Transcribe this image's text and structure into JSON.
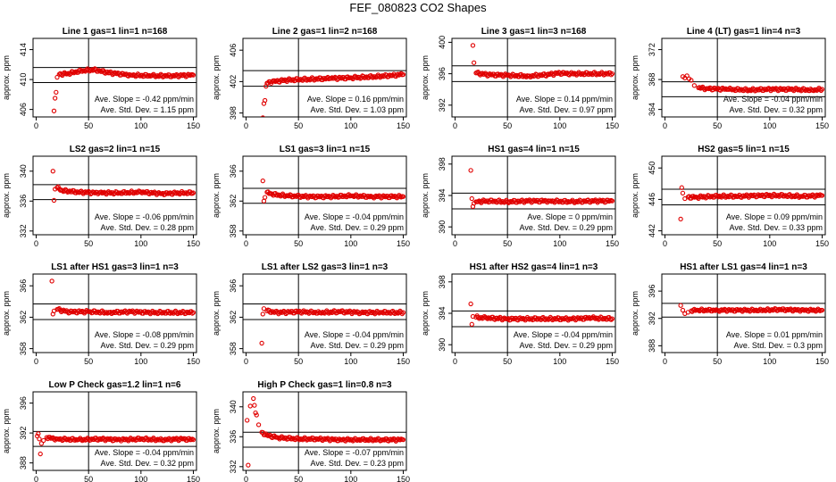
{
  "figure": {
    "title": "FEF_080823  CO2 Shapes"
  },
  "style": {
    "point_color": "#e00000",
    "axis_color": "#000000",
    "background": "#ffffff"
  },
  "chart_data": [
    {
      "type": "scatter",
      "title": "Line 1 gas=1 lin=1 n=168",
      "ylabel": "approx. ppm",
      "xlim": [
        0,
        150
      ],
      "ylim": [
        405,
        415.5
      ],
      "xticks": [
        0,
        50,
        100,
        150
      ],
      "yticks": [
        406,
        410,
        414
      ],
      "vline": 50,
      "hlines": [
        411.6,
        409.6
      ],
      "annotations": [
        "Ave. Slope = -0.42 ppm/min",
        "Ave. Std. Dev. = 1.15 ppm"
      ],
      "series": [
        {
          "x": [
            17,
            18,
            19,
            20,
            22,
            30,
            45,
            55,
            70,
            90,
            110,
            130,
            150
          ],
          "y": [
            405.8,
            407.5,
            408.3,
            410.3,
            410.7,
            410.8,
            411.2,
            411.3,
            410.9,
            410.6,
            410.5,
            410.5,
            410.6
          ]
        }
      ]
    },
    {
      "type": "scatter",
      "title": "Line 2 gas=1 lin=2 n=168",
      "ylabel": "approx. ppm",
      "xlim": [
        0,
        150
      ],
      "ylim": [
        397.5,
        407.5
      ],
      "xticks": [
        0,
        50,
        100,
        150
      ],
      "yticks": [
        398,
        402,
        406
      ],
      "vline": 50,
      "hlines": [
        403.4,
        401.4
      ],
      "annotations": [
        "Ave. Slope = 0.16 ppm/min",
        "Ave. Std. Dev. = 1.03 ppm"
      ],
      "series": [
        {
          "x": [
            16,
            17,
            18,
            19,
            20,
            25,
            40,
            60,
            80,
            100,
            120,
            140,
            150
          ],
          "y": [
            397.4,
            399.2,
            399.6,
            401.4,
            401.8,
            402.0,
            402.2,
            402.3,
            402.4,
            402.5,
            402.6,
            402.8,
            402.9
          ]
        }
      ]
    },
    {
      "type": "scatter",
      "title": "Line 3 gas=1 lin=3 n=168",
      "ylabel": "approx. ppm",
      "xlim": [
        0,
        150
      ],
      "ylim": [
        390.5,
        400.5
      ],
      "xticks": [
        0,
        50,
        100,
        150
      ],
      "yticks": [
        392,
        396,
        400
      ],
      "vline": 50,
      "hlines": [
        397.0,
        395.0
      ],
      "annotations": [
        "Ave. Slope = 0.14 ppm/min",
        "Ave. Std. Dev. = 0.97 ppm"
      ],
      "series": [
        {
          "x": [
            17,
            18,
            20,
            30,
            50,
            70,
            90,
            100,
            110,
            130,
            150
          ],
          "y": [
            399.6,
            397.4,
            396.1,
            395.9,
            395.8,
            395.7,
            395.9,
            396.1,
            396.0,
            396.0,
            396.0
          ]
        }
      ]
    },
    {
      "type": "scatter",
      "title": "Line 4 (LT) gas=1 lin=4 n=3",
      "ylabel": "approx. ppm",
      "xlim": [
        0,
        150
      ],
      "ylim": [
        363,
        373.5
      ],
      "xticks": [
        0,
        50,
        100,
        150
      ],
      "yticks": [
        364,
        368,
        372
      ],
      "vline": 50,
      "hlines": [
        367.7,
        365.7
      ],
      "annotations": [
        "Ave. Slope = -0.04 ppm/min",
        "Ave. Std. Dev. = 0.32 ppm"
      ],
      "series": [
        {
          "x": [
            17,
            19,
            21,
            23,
            25,
            28,
            32,
            40,
            60,
            80,
            100,
            120,
            140,
            150
          ],
          "y": [
            368.4,
            368.2,
            368.5,
            368.1,
            367.9,
            367.2,
            366.9,
            366.8,
            366.7,
            366.6,
            366.7,
            366.7,
            366.6,
            366.7
          ]
        }
      ]
    },
    {
      "type": "scatter",
      "title": "LS2 gas=2 lin=1 n=15",
      "ylabel": "approx. ppm",
      "xlim": [
        0,
        150
      ],
      "ylim": [
        331.5,
        342
      ],
      "xticks": [
        0,
        50,
        100,
        150
      ],
      "yticks": [
        332,
        336,
        340
      ],
      "vline": 50,
      "hlines": [
        338.2,
        336.2
      ],
      "annotations": [
        "Ave. Slope = -0.06 ppm/min",
        "Ave. Std. Dev. = 0.28 ppm"
      ],
      "series": [
        {
          "x": [
            16,
            17,
            18,
            20,
            25,
            40,
            60,
            80,
            100,
            120,
            140,
            150
          ],
          "y": [
            340.0,
            336.1,
            337.6,
            337.8,
            337.4,
            337.2,
            337.1,
            337.1,
            337.2,
            337.0,
            337.1,
            337.1
          ]
        }
      ]
    },
    {
      "type": "scatter",
      "title": "LS1 gas=3 lin=1 n=15",
      "ylabel": "approx. ppm",
      "xlim": [
        0,
        150
      ],
      "ylim": [
        357.5,
        368
      ],
      "xticks": [
        0,
        50,
        100,
        150
      ],
      "yticks": [
        358,
        362,
        366
      ],
      "vline": 50,
      "hlines": [
        363.7,
        361.7
      ],
      "annotations": [
        "Ave. Slope = -0.04 ppm/min",
        "Ave. Std. Dev. = 0.29 ppm"
      ],
      "series": [
        {
          "x": [
            16,
            17,
            18,
            20,
            25,
            40,
            60,
            80,
            100,
            120,
            140,
            150
          ],
          "y": [
            364.7,
            362.0,
            362.5,
            363.2,
            362.9,
            362.7,
            362.6,
            362.6,
            362.7,
            362.6,
            362.6,
            362.6
          ]
        }
      ]
    },
    {
      "type": "scatter",
      "title": "HS1 gas=4 lin=1 n=15",
      "ylabel": "approx. ppm",
      "xlim": [
        0,
        150
      ],
      "ylim": [
        389,
        399
      ],
      "xticks": [
        0,
        50,
        100,
        150
      ],
      "yticks": [
        390,
        394,
        398
      ],
      "vline": 50,
      "hlines": [
        394.3,
        392.3
      ],
      "annotations": [
        "Ave. Slope = 0 ppm/min",
        "Ave. Std. Dev. = 0.29 ppm"
      ],
      "series": [
        {
          "x": [
            15,
            16,
            17,
            18,
            20,
            30,
            50,
            70,
            90,
            110,
            130,
            150
          ],
          "y": [
            397.2,
            393.6,
            392.6,
            393.0,
            393.2,
            393.3,
            393.2,
            393.3,
            393.3,
            393.2,
            393.3,
            393.3
          ]
        }
      ]
    },
    {
      "type": "scatter",
      "title": "HS2 gas=5 lin=1 n=15",
      "ylabel": "approx. ppm",
      "xlim": [
        0,
        150
      ],
      "ylim": [
        441.5,
        451.5
      ],
      "xticks": [
        0,
        50,
        100,
        150
      ],
      "yticks": [
        442,
        446,
        450
      ],
      "vline": 50,
      "hlines": [
        447.3,
        445.3
      ],
      "annotations": [
        "Ave. Slope = 0.09 ppm/min",
        "Ave. Std. Dev. = 0.33 ppm"
      ],
      "series": [
        {
          "x": [
            15,
            16,
            17,
            19,
            22,
            30,
            50,
            70,
            90,
            110,
            130,
            150
          ],
          "y": [
            443.5,
            447.5,
            446.8,
            446.1,
            446.3,
            446.3,
            446.4,
            446.4,
            446.5,
            446.5,
            446.4,
            446.5
          ]
        }
      ]
    },
    {
      "type": "scatter",
      "title": "LS1 after HS1 gas=3 lin=1 n=3",
      "ylabel": "approx. ppm",
      "xlim": [
        0,
        150
      ],
      "ylim": [
        357.5,
        367.5
      ],
      "xticks": [
        0,
        50,
        100,
        150
      ],
      "yticks": [
        358,
        362,
        366
      ],
      "vline": 50,
      "hlines": [
        363.7,
        361.7
      ],
      "annotations": [
        "Ave. Slope = -0.08 ppm/min",
        "Ave. Std. Dev. = 0.29 ppm"
      ],
      "series": [
        {
          "x": [
            15,
            16,
            17,
            20,
            30,
            50,
            70,
            90,
            110,
            130,
            150
          ],
          "y": [
            366.6,
            362.4,
            362.8,
            363.0,
            362.7,
            362.7,
            362.6,
            362.7,
            362.6,
            362.6,
            362.6
          ]
        }
      ]
    },
    {
      "type": "scatter",
      "title": "LS1 after LS2 gas=3 lin=1 n=3",
      "ylabel": "approx. ppm",
      "xlim": [
        0,
        150
      ],
      "ylim": [
        357.5,
        367.5
      ],
      "xticks": [
        0,
        50,
        100,
        150
      ],
      "yticks": [
        358,
        362,
        366
      ],
      "vline": 50,
      "hlines": [
        363.7,
        361.7
      ],
      "annotations": [
        "Ave. Slope = -0.04 ppm/min",
        "Ave. Std. Dev. = 0.29 ppm"
      ],
      "series": [
        {
          "x": [
            15,
            16,
            17,
            20,
            30,
            50,
            70,
            90,
            110,
            130,
            150
          ],
          "y": [
            358.7,
            362.4,
            363.1,
            362.8,
            362.6,
            362.7,
            362.6,
            362.7,
            362.6,
            362.6,
            362.6
          ]
        }
      ]
    },
    {
      "type": "scatter",
      "title": "HS1 after HS2 gas=4 lin=1 n=3",
      "ylabel": "approx. ppm",
      "xlim": [
        0,
        150
      ],
      "ylim": [
        389,
        399
      ],
      "xticks": [
        0,
        50,
        100,
        150
      ],
      "yticks": [
        390,
        394,
        398
      ],
      "vline": 50,
      "hlines": [
        394.3,
        392.3
      ],
      "annotations": [
        "Ave. Slope = -0.04 ppm/min",
        "Ave. Std. Dev. = 0.29 ppm"
      ],
      "series": [
        {
          "x": [
            15,
            16,
            17,
            20,
            30,
            50,
            70,
            90,
            110,
            130,
            150
          ],
          "y": [
            395.2,
            392.6,
            393.6,
            393.5,
            393.4,
            393.3,
            393.3,
            393.3,
            393.3,
            393.4,
            393.3
          ]
        }
      ]
    },
    {
      "type": "scatter",
      "title": "HS1 after LS1 gas=4 lin=1 n=3",
      "ylabel": "approx. ppm",
      "xlim": [
        0,
        150
      ],
      "ylim": [
        387,
        398.5
      ],
      "xticks": [
        0,
        50,
        100,
        150
      ],
      "yticks": [
        388,
        392,
        396
      ],
      "vline": 50,
      "hlines": [
        394.2,
        392.2
      ],
      "annotations": [
        "Ave. Slope = 0.01 ppm/min",
        "Ave. Std. Dev. = 0.3 ppm"
      ],
      "series": [
        {
          "x": [
            15,
            17,
            19,
            22,
            25,
            30,
            50,
            70,
            90,
            110,
            130,
            150
          ],
          "y": [
            393.9,
            393.2,
            392.7,
            392.9,
            393.1,
            393.2,
            393.2,
            393.2,
            393.2,
            393.3,
            393.2,
            393.2
          ]
        }
      ]
    },
    {
      "type": "scatter",
      "title": "Low P Check gas=1.2 lin=1 n=6",
      "ylabel": "approx. ppm",
      "xlim": [
        0,
        150
      ],
      "ylim": [
        387,
        397.5
      ],
      "xticks": [
        0,
        50,
        100,
        150
      ],
      "yticks": [
        388,
        392,
        396
      ],
      "vline": 50,
      "hlines": [
        392.2,
        390.2
      ],
      "annotations": [
        "Ave. Slope = -0.04 ppm/min",
        "Ave. Std. Dev. = 0.32 ppm"
      ],
      "series": [
        {
          "x": [
            1,
            2,
            3,
            4,
            5,
            7,
            10,
            20,
            40,
            60,
            80,
            100,
            120,
            140,
            150
          ],
          "y": [
            391.6,
            391.9,
            391.2,
            389.2,
            390.6,
            391.0,
            391.4,
            391.2,
            391.1,
            391.2,
            391.1,
            391.2,
            391.1,
            391.2,
            391.1
          ]
        }
      ]
    },
    {
      "type": "scatter",
      "title": "High P Check gas=1 lin=0.8 n=3",
      "ylabel": "approx. ppm",
      "xlim": [
        0,
        150
      ],
      "ylim": [
        331.5,
        342
      ],
      "xticks": [
        0,
        50,
        100,
        150
      ],
      "yticks": [
        332,
        336,
        340
      ],
      "vline": 50,
      "hlines": [
        336.6,
        334.6
      ],
      "annotations": [
        "Ave. Slope = -0.07 ppm/min",
        "Ave. Std. Dev. = 0.23 ppm"
      ],
      "series": [
        {
          "x": [
            1,
            2,
            4,
            7,
            8,
            9,
            10,
            12,
            15,
            20,
            30,
            50,
            70,
            90,
            110,
            130,
            150
          ],
          "y": [
            338.2,
            332.2,
            340.1,
            341.1,
            340.2,
            339.2,
            338.9,
            337.6,
            336.6,
            336.2,
            335.9,
            335.7,
            335.7,
            335.6,
            335.6,
            335.6,
            335.6
          ]
        }
      ]
    }
  ]
}
